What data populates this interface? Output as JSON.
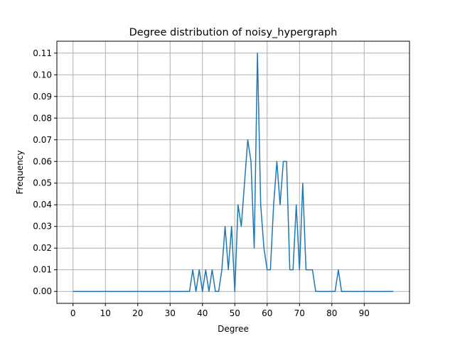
{
  "chart_data": {
    "type": "line",
    "title": "Degree distribution of noisy_hypergraph",
    "xlabel": "Degree",
    "ylabel": "Frequency",
    "xlim": [
      -5,
      104
    ],
    "ylim": [
      -0.0055,
      0.1155
    ],
    "grid": true,
    "line_color": "#1f77b4",
    "grid_color": "#b0b0b0",
    "x_ticks": [
      0,
      10,
      20,
      30,
      40,
      50,
      60,
      70,
      80,
      90
    ],
    "x_tick_labels": [
      "0",
      "10",
      "20",
      "30",
      "40",
      "50",
      "60",
      "70",
      "80",
      "90"
    ],
    "y_ticks": [
      0.0,
      0.01,
      0.02,
      0.03,
      0.04,
      0.05,
      0.06,
      0.07,
      0.08,
      0.09,
      0.1,
      0.11
    ],
    "y_tick_labels": [
      "0.00",
      "0.01",
      "0.02",
      "0.03",
      "0.04",
      "0.05",
      "0.06",
      "0.07",
      "0.08",
      "0.09",
      "0.10",
      "0.11"
    ],
    "x": [
      0,
      1,
      2,
      3,
      4,
      5,
      6,
      7,
      8,
      9,
      10,
      11,
      12,
      13,
      14,
      15,
      16,
      17,
      18,
      19,
      20,
      21,
      22,
      23,
      24,
      25,
      26,
      27,
      28,
      29,
      30,
      31,
      32,
      33,
      34,
      35,
      36,
      37,
      38,
      39,
      40,
      41,
      42,
      43,
      44,
      45,
      46,
      47,
      48,
      49,
      50,
      51,
      52,
      53,
      54,
      55,
      56,
      57,
      58,
      59,
      60,
      61,
      62,
      63,
      64,
      65,
      66,
      67,
      68,
      69,
      70,
      71,
      72,
      73,
      74,
      75,
      76,
      77,
      78,
      79,
      80,
      81,
      82,
      83,
      84,
      85,
      86,
      87,
      88,
      89,
      90,
      91,
      92,
      93,
      94,
      95,
      96,
      97,
      98,
      99
    ],
    "y": [
      0,
      0,
      0,
      0,
      0,
      0,
      0,
      0,
      0,
      0,
      0,
      0,
      0,
      0,
      0,
      0,
      0,
      0,
      0,
      0,
      0,
      0,
      0,
      0,
      0,
      0,
      0,
      0,
      0,
      0,
      0,
      0,
      0,
      0,
      0,
      0,
      0,
      0.01,
      0,
      0.01,
      0,
      0.01,
      0,
      0.01,
      0,
      0,
      0.01,
      0.03,
      0.01,
      0.03,
      0,
      0.04,
      0.03,
      0.05,
      0.07,
      0.06,
      0.02,
      0.11,
      0.04,
      0.02,
      0.01,
      0.01,
      0.04,
      0.06,
      0.04,
      0.06,
      0.06,
      0.01,
      0.01,
      0.04,
      0.01,
      0.05,
      0.01,
      0.01,
      0.01,
      0,
      0,
      0,
      0,
      0,
      0,
      0,
      0.01,
      0,
      0,
      0,
      0,
      0,
      0,
      0,
      0,
      0,
      0,
      0,
      0,
      0,
      0,
      0,
      0,
      0
    ]
  }
}
